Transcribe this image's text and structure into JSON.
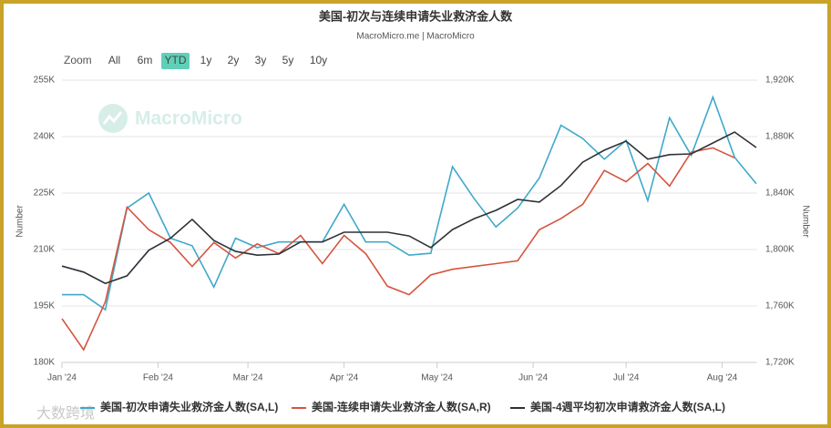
{
  "chart_data": {
    "type": "line",
    "title": "美国-初次与连续申请失业救济金人数",
    "subtitle": "MacroMicro.me | MacroMicro",
    "watermark": "MacroMicro",
    "overlay_watermark": "大数跨境",
    "zoom_label": "Zoom",
    "zoom_options": [
      "All",
      "6m",
      "YTD",
      "1y",
      "2y",
      "3y",
      "5y",
      "10y"
    ],
    "zoom_selected": "YTD",
    "ylabel": "Number",
    "y2label": "Number",
    "x": [
      0,
      7,
      14,
      21,
      28,
      35,
      42,
      49,
      56,
      63,
      70,
      77,
      84,
      91,
      98,
      105,
      112,
      119,
      126,
      133,
      140,
      147,
      154,
      161,
      168,
      175,
      182,
      189,
      196,
      203,
      210,
      217,
      224
    ],
    "xlim": [
      0,
      224
    ],
    "xticks": [
      {
        "value": 0,
        "label": "Jan '24"
      },
      {
        "value": 31,
        "label": "Feb '24"
      },
      {
        "value": 60,
        "label": "Mar '24"
      },
      {
        "value": 91,
        "label": "Apr '24"
      },
      {
        "value": 121,
        "label": "May '24"
      },
      {
        "value": 152,
        "label": "Jun '24"
      },
      {
        "value": 182,
        "label": "Jul '24"
      },
      {
        "value": 213,
        "label": "Aug '24"
      }
    ],
    "ylim": [
      180000,
      255000
    ],
    "yticks": [
      {
        "value": 180000,
        "label": "180K"
      },
      {
        "value": 195000,
        "label": "195K"
      },
      {
        "value": 210000,
        "label": "210K"
      },
      {
        "value": 225000,
        "label": "225K"
      },
      {
        "value": 240000,
        "label": "240K"
      },
      {
        "value": 255000,
        "label": "255K"
      }
    ],
    "y2lim": [
      1720000,
      1920000
    ],
    "y2ticks": [
      {
        "value": 1720000,
        "label": "1,720K"
      },
      {
        "value": 1760000,
        "label": "1,760K"
      },
      {
        "value": 1800000,
        "label": "1,800K"
      },
      {
        "value": 1840000,
        "label": "1,840K"
      },
      {
        "value": 1880000,
        "label": "1,880K"
      },
      {
        "value": 1920000,
        "label": "1,920K"
      }
    ],
    "grid": true,
    "legend": "bottom",
    "series": [
      {
        "name": "美国-初次申请失业救济金人数(SA,L)",
        "color": "#3fa9c9",
        "axis": "y",
        "values": [
          198000,
          198000,
          194000,
          221000,
          225000,
          213000,
          211000,
          200000,
          213000,
          210500,
          212000,
          212000,
          212000,
          222000,
          212000,
          212000,
          208500,
          209000,
          232000,
          223500,
          216000,
          221000,
          229000,
          243000,
          239500,
          234000,
          239000,
          223000,
          245000,
          235000,
          250500,
          234500,
          227500
        ]
      },
      {
        "name": "美国-连续申请失业救济金人数(SA,R)",
        "color": "#d6533e",
        "axis": "y2",
        "values": [
          1751000,
          1729000,
          1763000,
          1830000,
          1814000,
          1805000,
          1788000,
          1805000,
          1794000,
          1804000,
          1797000,
          1810000,
          1790000,
          1810000,
          1797000,
          1774000,
          1768000,
          1782000,
          1786000,
          1788000,
          1790000,
          1792000,
          1814000,
          1822000,
          1832000,
          1856000,
          1848000,
          1861000,
          1845000,
          1869000,
          1872000,
          1865000,
          null
        ]
      },
      {
        "name": "美国-4週平均初次申请救济金人数(SA,L)",
        "color": "#2d3238",
        "axis": "y",
        "values": [
          205600,
          204000,
          201000,
          203000,
          209800,
          213000,
          218000,
          212400,
          209500,
          208500,
          208800,
          212000,
          212000,
          214600,
          214600,
          214600,
          213600,
          210500,
          215300,
          218200,
          220400,
          223300,
          222600,
          227000,
          233200,
          236400,
          238800,
          234000,
          235200,
          235400,
          238300,
          241200,
          237100
        ]
      }
    ]
  }
}
